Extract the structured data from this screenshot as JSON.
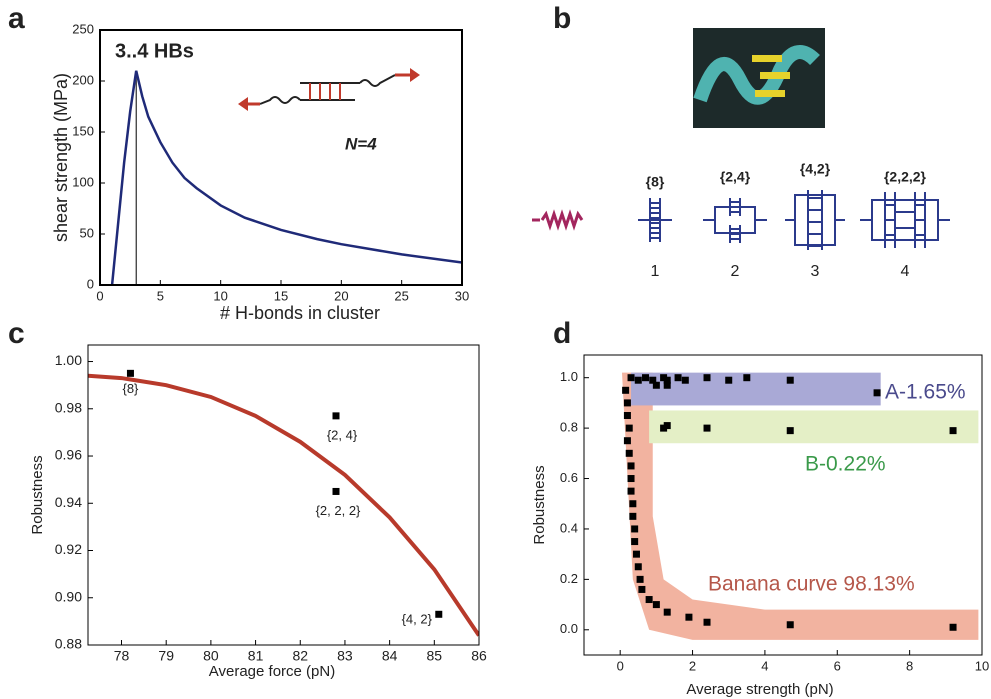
{
  "chart_data": [
    {
      "type": "line",
      "panel": "a",
      "xlabel": "# H-bonds in cluster",
      "ylabel": "shear strength (MPa)",
      "annotations": [
        "3..4 HBs",
        "N=4"
      ],
      "xlim": [
        0,
        30
      ],
      "ylim": [
        0,
        250
      ],
      "xticks": [
        0,
        5,
        10,
        15,
        20,
        25,
        30
      ],
      "yticks": [
        0,
        50,
        100,
        150,
        200,
        250
      ],
      "vline_x": 3,
      "series": [
        {
          "type": "line",
          "color": "#1f2a78",
          "x": [
            1,
            1.5,
            2,
            2.5,
            3,
            3.5,
            4,
            5,
            6,
            7,
            8,
            10,
            12,
            15,
            18,
            20,
            25,
            30
          ],
          "values": [
            0,
            60,
            120,
            170,
            210,
            185,
            165,
            140,
            120,
            105,
            95,
            78,
            66,
            54,
            45,
            40,
            30,
            22
          ]
        }
      ]
    },
    {
      "type": "scatter",
      "panel": "c",
      "xlabel": "Average force (pN)",
      "ylabel": "Robustness",
      "xlim": [
        77.25,
        86
      ],
      "ylim": [
        0.88,
        1.007
      ],
      "xticks": [
        78,
        79,
        80,
        81,
        82,
        83,
        84,
        85,
        86
      ],
      "yticks": [
        0.88,
        {
          "value": 0.9,
          "label": "0.90"
        },
        0.92,
        0.94,
        0.96,
        0.98,
        {
          "value": 1,
          "label": "1.00"
        }
      ],
      "series": [
        {
          "type": "line",
          "color": "#b83a2b",
          "x": [
            77.25,
            78,
            79,
            80,
            81,
            82,
            83,
            84,
            85,
            86
          ],
          "values": [
            0.994,
            0.993,
            0.99,
            0.985,
            0.977,
            0.966,
            0.952,
            0.934,
            0.912,
            0.884
          ]
        },
        {
          "type": "scatter",
          "color": "#000000",
          "x": [
            78.2,
            82.8,
            82.8,
            85.1
          ],
          "values": [
            0.995,
            0.977,
            0.945,
            0.893
          ],
          "point_labels": [
            "{8}",
            "{2, 4}",
            "{2, 2, 2}",
            "{4, 2}"
          ]
        }
      ]
    },
    {
      "type": "scatter",
      "panel": "d",
      "xlabel": "Average strength (pN)",
      "ylabel": "Robustness",
      "xlim": [
        -1,
        10
      ],
      "ylim": [
        -0.1,
        1.09
      ],
      "xticks": [
        0,
        2,
        4,
        6,
        8,
        10
      ],
      "yticks": [
        {
          "value": 0,
          "label": "0.0"
        },
        0.2,
        0.4,
        0.6,
        0.8,
        {
          "value": 1,
          "label": "1.0"
        }
      ],
      "regions": [
        {
          "shape": "polygon",
          "label": "Banana curve 98.13%",
          "color": "#f2b3a0",
          "text_color": "#b5574a",
          "x": [
            0.05,
            0.9,
            0.9,
            1.2,
            2,
            4,
            9.9,
            9.9,
            2,
            0.8,
            0.35,
            0.05
          ],
          "y": [
            1.02,
            1.02,
            0.45,
            0.2,
            0.12,
            0.08,
            0.08,
            -0.04,
            -0.04,
            0.0,
            0.2,
            1.02
          ]
        },
        {
          "shape": "rect",
          "label": "A-1.65%",
          "color": "#a9a9d6",
          "text_color": "#4a4a8c",
          "x": [
            0.3,
            7.2
          ],
          "y": [
            0.89,
            1.02
          ]
        },
        {
          "shape": "rect",
          "label": "B-0.22%",
          "color": "#e4efc6",
          "text_color": "#3a9a4a",
          "x": [
            0.8,
            9.9
          ],
          "y": [
            0.74,
            0.87
          ]
        }
      ],
      "series": [
        {
          "type": "scatter",
          "color": "#000000",
          "x": [
            0.3,
            0.5,
            0.7,
            0.9,
            1.2,
            1.3,
            1.6,
            1.8,
            2.4,
            3.0,
            3.5,
            4.7,
            7.1,
            1.0,
            1.3,
            1.2,
            1.3,
            2.4,
            4.7,
            9.2,
            0.15,
            0.2,
            0.2,
            0.25,
            0.2,
            0.25,
            0.3,
            0.3,
            0.3,
            0.35,
            0.35,
            0.4,
            0.4,
            0.45,
            0.5,
            0.55,
            0.6,
            0.8,
            1.0,
            1.3,
            1.9,
            2.4,
            4.7,
            9.2
          ],
          "values": [
            1.0,
            0.99,
            1.0,
            0.99,
            1.0,
            0.99,
            1.0,
            0.99,
            1.0,
            0.99,
            1.0,
            0.99,
            0.94,
            0.97,
            0.97,
            0.8,
            0.81,
            0.8,
            0.79,
            0.79,
            0.95,
            0.9,
            0.85,
            0.8,
            0.75,
            0.7,
            0.65,
            0.6,
            0.55,
            0.5,
            0.45,
            0.4,
            0.35,
            0.3,
            0.25,
            0.2,
            0.16,
            0.12,
            0.1,
            0.07,
            0.05,
            0.03,
            0.02,
            0.01
          ]
        }
      ]
    }
  ],
  "diagram_b": {
    "panel": "b",
    "structures": [
      {
        "label": "{8}",
        "index": 1
      },
      {
        "label": "{2,4}",
        "index": 2
      },
      {
        "label": "{4,2}",
        "index": 3
      },
      {
        "label": "{2,2,2}",
        "index": 4
      }
    ]
  }
}
